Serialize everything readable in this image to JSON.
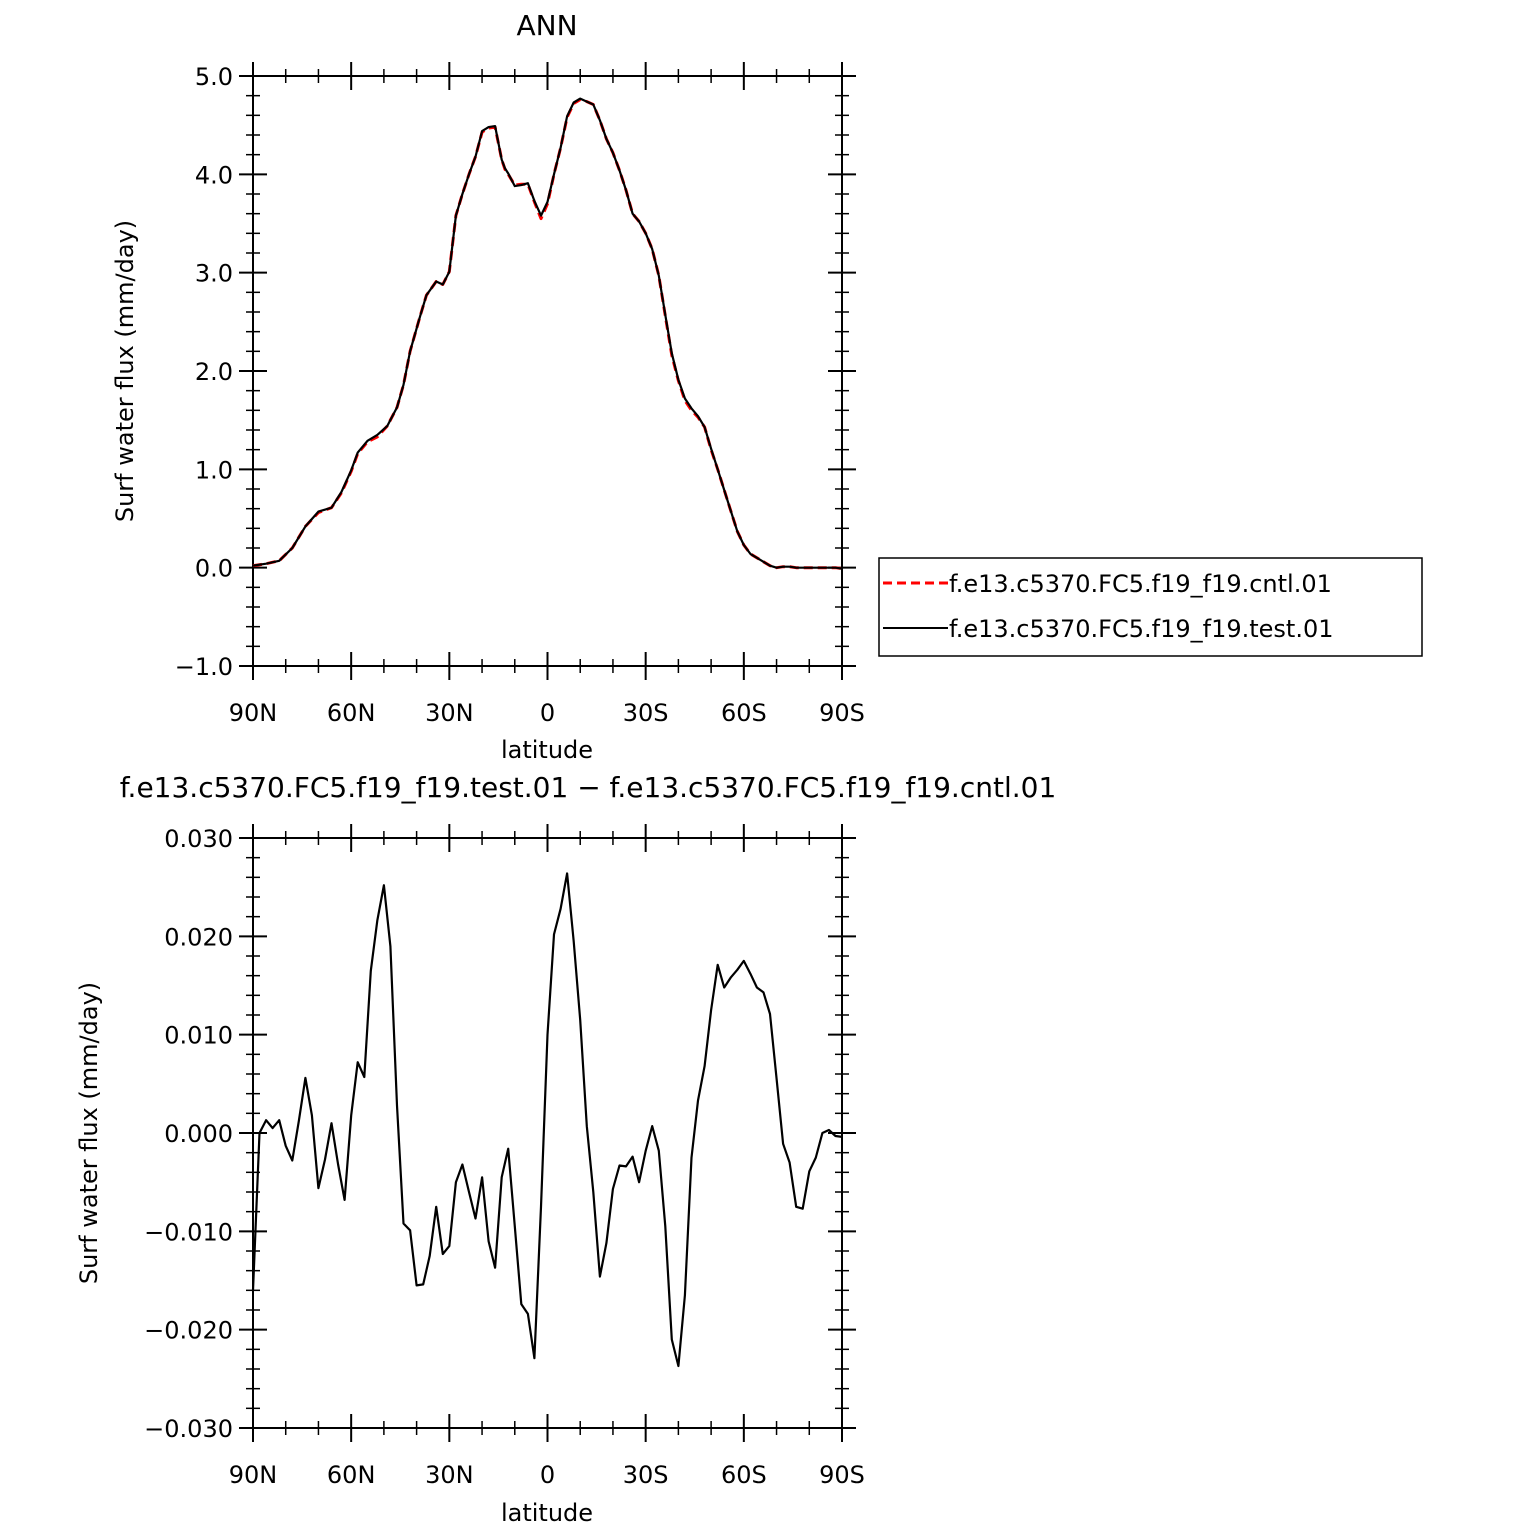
{
  "chart_data": [
    {
      "type": "line",
      "title": "ANN",
      "xlabel": "latitude",
      "ylabel": "Surf water flux (mm/day)",
      "xlim": [
        90,
        -90
      ],
      "ylim": [
        -1.0,
        5.0
      ],
      "yticks": [
        "5.0",
        "4.0",
        "3.0",
        "2.0",
        "1.0",
        "0.0",
        "−1.0"
      ],
      "ytick_values": [
        5,
        4,
        3,
        2,
        1,
        0,
        -1
      ],
      "xticks": [
        "90N",
        "60N",
        "30N",
        "0",
        "30S",
        "60S",
        "90S"
      ],
      "xtick_values": [
        90,
        60,
        30,
        0,
        -30,
        -60,
        -90
      ],
      "legend_position": "right",
      "series": [
        {
          "name": "f.e13.c5370.FC5.f19_f19.cntl.01",
          "color": "#ff0000",
          "style": "dashed",
          "x": [
            90,
            86,
            82,
            78,
            74,
            70,
            66,
            63,
            60,
            58,
            55,
            52,
            49,
            46,
            44,
            42,
            39,
            37,
            34,
            32,
            30,
            28,
            26,
            24,
            22,
            20,
            18,
            16,
            14,
            13,
            12,
            10,
            8,
            6,
            4,
            2,
            0,
            -2,
            -4,
            -6,
            -8,
            -10,
            -12,
            -14,
            -16,
            -18,
            -20,
            -22,
            -24,
            -26,
            -28,
            -30,
            -32,
            -34,
            -36,
            -38,
            -40,
            -42,
            -44,
            -46,
            -48,
            -50,
            -52,
            -54,
            -56,
            -58,
            -60,
            -62,
            -64,
            -66,
            -68,
            -70,
            -72,
            -74,
            -76,
            -78,
            -80,
            -82,
            -84,
            -86,
            -88,
            -90
          ],
          "values": [
            0.02,
            0.04,
            0.07,
            0.2,
            0.42,
            0.56,
            0.61,
            0.76,
            0.98,
            1.16,
            1.28,
            1.33,
            1.44,
            1.63,
            1.86,
            2.2,
            2.55,
            2.77,
            2.91,
            2.88,
            3.01,
            3.58,
            3.8,
            4.0,
            4.18,
            4.43,
            4.47,
            4.48,
            4.15,
            4.05,
            4.0,
            3.89,
            3.9,
            3.9,
            3.72,
            3.55,
            3.7,
            4.0,
            4.27,
            4.58,
            4.72,
            4.76,
            4.74,
            4.71,
            4.55,
            4.36,
            4.22,
            4.04,
            3.84,
            3.6,
            3.52,
            3.4,
            3.24,
            2.97,
            2.56,
            2.16,
            1.9,
            1.7,
            1.6,
            1.53,
            1.43,
            1.2,
            1.0,
            0.79,
            0.58,
            0.37,
            0.23,
            0.14,
            0.1,
            0.06,
            0.02,
            0.0,
            0.01,
            0.01,
            0.0,
            0.0,
            0.0,
            0.0,
            0.0,
            0.0,
            0.0,
            -0.01
          ]
        },
        {
          "name": "f.e13.c5370.FC5.f19_f19.test.01",
          "color": "#000000",
          "style": "solid",
          "x": [
            90,
            86,
            82,
            78,
            74,
            70,
            66,
            63,
            60,
            58,
            55,
            52,
            49,
            46,
            44,
            42,
            39,
            37,
            34,
            32,
            30,
            28,
            26,
            24,
            22,
            20,
            18,
            16,
            14,
            13,
            12,
            10,
            8,
            6,
            4,
            2,
            0,
            -2,
            -4,
            -6,
            -8,
            -10,
            -12,
            -14,
            -16,
            -18,
            -20,
            -22,
            -24,
            -26,
            -28,
            -30,
            -32,
            -34,
            -36,
            -38,
            -40,
            -42,
            -44,
            -46,
            -48,
            -50,
            -52,
            -54,
            -56,
            -58,
            -60,
            -62,
            -64,
            -66,
            -68,
            -70,
            -72,
            -74,
            -76,
            -78,
            -80,
            -82,
            -84,
            -86,
            -88,
            -90
          ],
          "values": [
            0.02,
            0.04,
            0.07,
            0.2,
            0.42,
            0.57,
            0.61,
            0.77,
            0.99,
            1.17,
            1.29,
            1.35,
            1.44,
            1.63,
            1.86,
            2.2,
            2.55,
            2.77,
            2.91,
            2.88,
            3.01,
            3.58,
            3.8,
            4.0,
            4.18,
            4.44,
            4.48,
            4.49,
            4.15,
            4.06,
            4.01,
            3.88,
            3.89,
            3.91,
            3.73,
            3.58,
            3.72,
            4.0,
            4.27,
            4.59,
            4.73,
            4.77,
            4.74,
            4.71,
            4.55,
            4.36,
            4.22,
            4.04,
            3.84,
            3.6,
            3.52,
            3.4,
            3.24,
            2.97,
            2.57,
            2.18,
            1.91,
            1.72,
            1.62,
            1.54,
            1.43,
            1.21,
            1.0,
            0.79,
            0.58,
            0.37,
            0.23,
            0.14,
            0.1,
            0.06,
            0.02,
            0.0,
            0.01,
            0.01,
            0.0,
            0.0,
            0.0,
            0.0,
            0.0,
            0.0,
            0.0,
            -0.01
          ]
        }
      ]
    },
    {
      "type": "line",
      "title": "f.e13.c5370.FC5.f19_f19.test.01  −  f.e13.c5370.FC5.f19_f19.cntl.01",
      "xlabel": "latitude",
      "ylabel": "Surf water flux (mm/day)",
      "xlim": [
        90,
        -90
      ],
      "ylim": [
        -0.03,
        0.03
      ],
      "yticks": [
        "0.030",
        "0.020",
        "0.010",
        "0.000",
        "−0.010",
        "−0.020",
        "−0.030"
      ],
      "ytick_values": [
        0.03,
        0.02,
        0.01,
        0.0,
        -0.01,
        -0.02,
        -0.03
      ],
      "xticks": [
        "90N",
        "60N",
        "30N",
        "0",
        "30S",
        "60S",
        "90S"
      ],
      "xtick_values": [
        90,
        60,
        30,
        0,
        -30,
        -60,
        -90
      ],
      "series": [
        {
          "color": "#000000",
          "style": "solid",
          "x": [
            90,
            88,
            86,
            84,
            82,
            80,
            78,
            76,
            74,
            72,
            70,
            68,
            66,
            64,
            62,
            60,
            58,
            56,
            54,
            52,
            50,
            48,
            46,
            44,
            42,
            40,
            38,
            36,
            34,
            32,
            30,
            28,
            26,
            24,
            22,
            20,
            18,
            16,
            14,
            12,
            10,
            8,
            6,
            4,
            2,
            0,
            -2,
            -4,
            -6,
            -8,
            -10,
            -12,
            -14,
            -16,
            -18,
            -20,
            -22,
            -24,
            -26,
            -28,
            -30,
            -32,
            -34,
            -36,
            -38,
            -40,
            -42,
            -44,
            -46,
            -48,
            -50,
            -52,
            -54,
            -56,
            -58,
            -60,
            -62,
            -64,
            -66,
            -68,
            -70,
            -72,
            -74,
            -76,
            -78,
            -80,
            -82,
            -84,
            -86,
            -88,
            -90
          ],
          "values": [
            -0.016,
            0.0,
            0.0013,
            0.0005,
            0.0013,
            -0.0013,
            -0.0028,
            0.0012,
            0.0056,
            0.0018,
            -0.0056,
            -0.0027,
            0.001,
            -0.0032,
            -0.0068,
            0.0018,
            0.0072,
            0.0057,
            0.0165,
            0.0216,
            0.0252,
            0.019,
            0.0028,
            -0.0092,
            -0.0099,
            -0.0155,
            -0.0154,
            -0.0125,
            -0.0075,
            -0.0123,
            -0.0115,
            -0.005,
            -0.0032,
            -0.006,
            -0.0087,
            -0.0045,
            -0.011,
            -0.0137,
            -0.0045,
            -0.0016,
            -0.0095,
            -0.0174,
            -0.0184,
            -0.0229,
            -0.0075,
            0.01,
            0.0202,
            0.0228,
            0.0264,
            0.0195,
            0.0115,
            0.0007,
            -0.006,
            -0.0146,
            -0.0112,
            -0.0057,
            -0.0033,
            -0.0034,
            -0.0024,
            -0.005,
            -0.0018,
            0.0007,
            -0.0018,
            -0.0095,
            -0.021,
            -0.0237,
            -0.0165,
            -0.0025,
            0.0033,
            0.0068,
            0.0125,
            0.0171,
            0.0148,
            0.0158,
            0.0166,
            0.0175,
            0.0162,
            0.0148,
            0.0143,
            0.0121,
            0.0055,
            -0.0011,
            -0.003,
            -0.0075,
            -0.0077,
            -0.0039,
            -0.0025,
            0.0,
            0.0003,
            -0.0003,
            -0.0004
          ]
        }
      ]
    }
  ]
}
